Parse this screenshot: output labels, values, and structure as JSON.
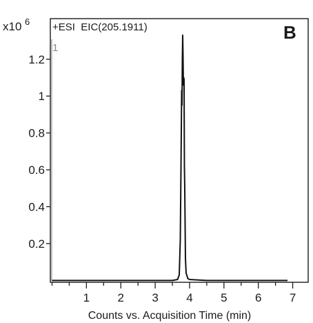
{
  "chart_data": {
    "type": "line",
    "header": "+ESI  EIC(205.1911)",
    "panel_label": "B",
    "trace_number": "1",
    "y_scale_label": "x10",
    "y_scale_exponent": "6",
    "xlabel": "Counts vs. Acquisition Time (min)",
    "ylabel": "",
    "xlim": [
      -0.05,
      7.45
    ],
    "ylim": [
      -0.01,
      1.42
    ],
    "x_ticks": [
      {
        "value": 1,
        "label": "1"
      },
      {
        "value": 2,
        "label": "2"
      },
      {
        "value": 3,
        "label": "3"
      },
      {
        "value": 4,
        "label": "4"
      },
      {
        "value": 5,
        "label": "5"
      },
      {
        "value": 6,
        "label": "6"
      },
      {
        "value": 7,
        "label": "7"
      }
    ],
    "y_ticks": [
      {
        "value": 0.2,
        "label": "0.2"
      },
      {
        "value": 0.4,
        "label": "0.4"
      },
      {
        "value": 0.6,
        "label": "0.6"
      },
      {
        "value": 0.8,
        "label": "0.8"
      },
      {
        "value": 1.0,
        "label": "1"
      },
      {
        "value": 1.2,
        "label": "1.2"
      }
    ],
    "grid": false,
    "line_color": "#111111",
    "series": [
      {
        "x": [
          0.0,
          0.5,
          1.0,
          2.0,
          3.0,
          3.5,
          3.65,
          3.7,
          3.73,
          3.75,
          3.77,
          3.78,
          3.79,
          3.8,
          3.81,
          3.82,
          3.83,
          3.84,
          3.85,
          3.86,
          3.88,
          3.9,
          3.95,
          4.0,
          4.5,
          5.0,
          5.5,
          6.0,
          6.5,
          6.85
        ],
        "y": [
          0.0,
          0.0,
          0.0,
          0.0,
          0.0,
          0.0,
          0.005,
          0.03,
          0.22,
          0.6,
          1.03,
          0.95,
          1.2,
          1.33,
          1.22,
          1.06,
          1.1,
          1.09,
          0.62,
          0.5,
          0.12,
          0.04,
          0.01,
          0.005,
          0.0,
          0.0,
          0.0,
          0.0,
          0.0,
          0.0
        ]
      }
    ]
  }
}
